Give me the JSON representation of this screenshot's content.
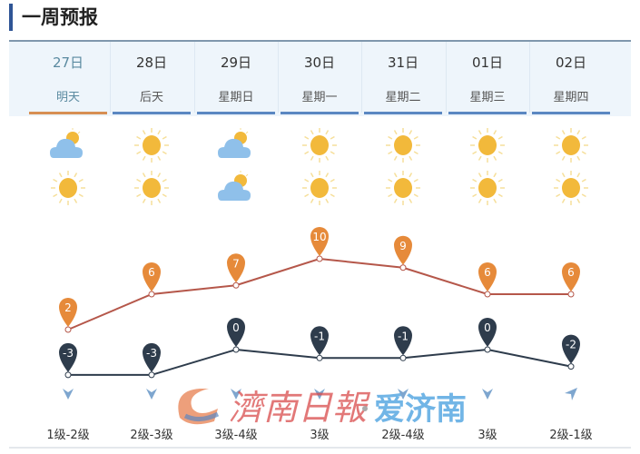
{
  "title": "一周预报",
  "days": [
    {
      "date": "27日",
      "weekday": "明天",
      "day_icon": "partly-cloudy-icon",
      "night_icon": "sun-icon",
      "high": 2,
      "low": -3,
      "wind": "1级-2级",
      "wind_dir": "down"
    },
    {
      "date": "28日",
      "weekday": "后天",
      "day_icon": "sun-icon",
      "night_icon": "sun-icon",
      "high": 6,
      "low": -3,
      "wind": "2级-3级",
      "wind_dir": "down"
    },
    {
      "date": "29日",
      "weekday": "星期日",
      "day_icon": "partly-cloudy-icon",
      "night_icon": "partly-cloudy-icon",
      "high": 7,
      "low": 0,
      "wind": "3级-4级",
      "wind_dir": "down"
    },
    {
      "date": "30日",
      "weekday": "星期一",
      "day_icon": "sun-icon",
      "night_icon": "sun-icon",
      "high": 10,
      "low": -1,
      "wind": "3级",
      "wind_dir": "down"
    },
    {
      "date": "31日",
      "weekday": "星期二",
      "day_icon": "sun-icon",
      "night_icon": "sun-icon",
      "high": 9,
      "low": -1,
      "wind": "2级-4级",
      "wind_dir": "down"
    },
    {
      "date": "01日",
      "weekday": "星期三",
      "day_icon": "sun-icon",
      "night_icon": "sun-icon",
      "high": 6,
      "low": 0,
      "wind": "3级",
      "wind_dir": "down"
    },
    {
      "date": "02日",
      "weekday": "星期四",
      "day_icon": "sun-icon",
      "night_icon": "sun-icon",
      "high": 6,
      "low": -2,
      "wind": "2级-1级",
      "wind_dir": "up-right"
    }
  ],
  "colors": {
    "high": "#e68a3a",
    "high_line": "#b5574a",
    "low": "#2e3c4c",
    "selected_underline": "#d78f53",
    "underline": "#5b87c2"
  },
  "watermark": "济南日报·爱济南"
}
